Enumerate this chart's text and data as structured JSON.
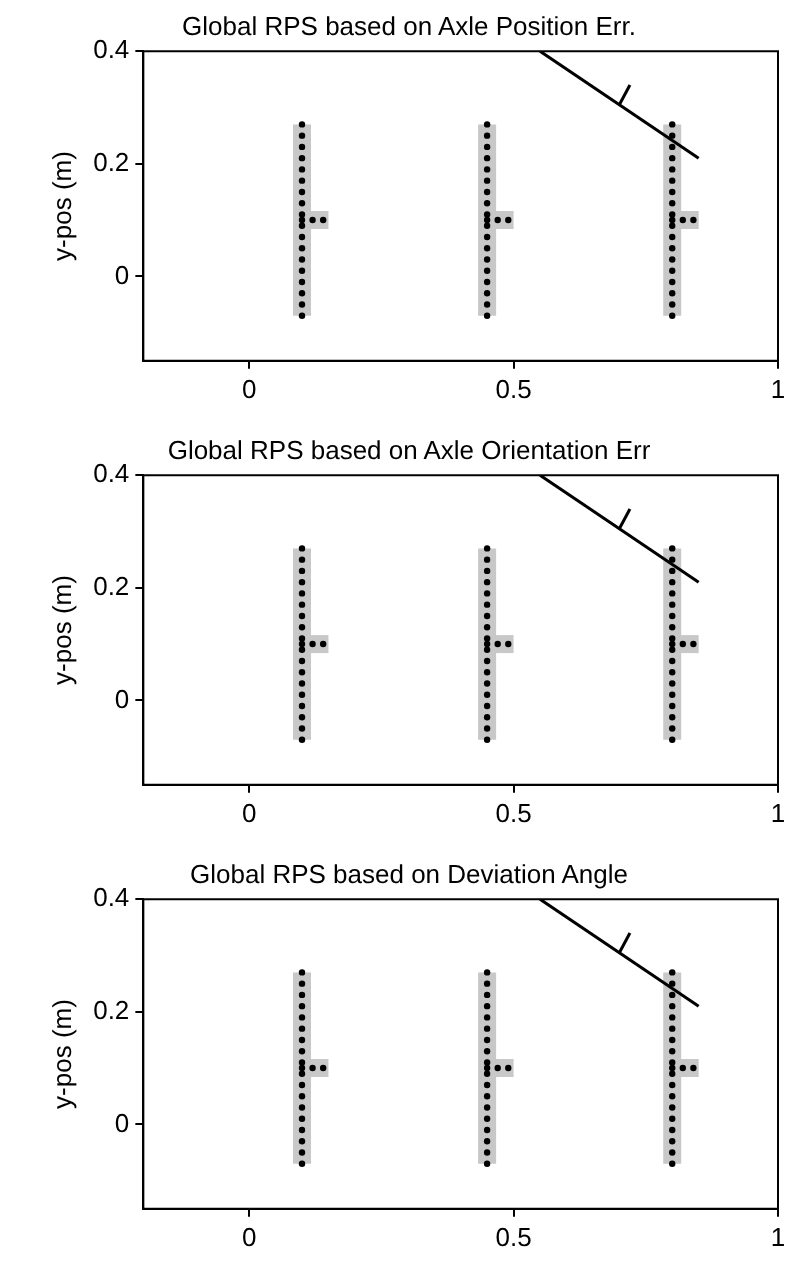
{
  "chart_data": [
    {
      "type": "scatter",
      "title": "Global RPS based on Axle Position Err.",
      "ylabel": "y-pos (m)",
      "xlim": [
        -0.2,
        1
      ],
      "ylim": [
        -0.15,
        0.4
      ],
      "xticks": [
        0,
        0.5,
        1
      ],
      "yticks": [
        0,
        0.2,
        0.4
      ],
      "grid": false,
      "legend": false,
      "series": [
        {
          "type": "line",
          "color": "#c8c8c8",
          "x": [
            0.1,
            0.1
          ],
          "values": [
            -0.07,
            0.27
          ]
        },
        {
          "type": "line",
          "color": "#c8c8c8",
          "x": [
            0.1,
            0.15
          ],
          "values": [
            0.1,
            0.1
          ]
        },
        {
          "type": "line",
          "color": "#c8c8c8",
          "x": [
            0.45,
            0.45
          ],
          "values": [
            -0.07,
            0.27
          ]
        },
        {
          "type": "line",
          "color": "#c8c8c8",
          "x": [
            0.45,
            0.5
          ],
          "values": [
            0.1,
            0.1
          ]
        },
        {
          "type": "line",
          "color": "#c8c8c8",
          "x": [
            0.8,
            0.8
          ],
          "values": [
            -0.07,
            0.27
          ]
        },
        {
          "type": "line",
          "color": "#c8c8c8",
          "x": [
            0.8,
            0.85
          ],
          "values": [
            0.1,
            0.1
          ]
        },
        {
          "color": "#000000",
          "marker": "circle",
          "x": [
            0.1,
            0.1,
            0.1,
            0.1,
            0.1,
            0.1,
            0.1,
            0.1,
            0.1,
            0.1,
            0.1,
            0.1,
            0.1,
            0.1,
            0.1,
            0.1,
            0.1,
            0.1,
            0.1,
            0.12,
            0.14
          ],
          "values": [
            -0.07,
            -0.05,
            -0.03,
            -0.01,
            0.01,
            0.03,
            0.05,
            0.07,
            0.09,
            0.11,
            0.13,
            0.15,
            0.17,
            0.19,
            0.21,
            0.23,
            0.25,
            0.27,
            0.1,
            0.1,
            0.1
          ]
        },
        {
          "color": "#000000",
          "marker": "circle",
          "x": [
            0.45,
            0.45,
            0.45,
            0.45,
            0.45,
            0.45,
            0.45,
            0.45,
            0.45,
            0.45,
            0.45,
            0.45,
            0.45,
            0.45,
            0.45,
            0.45,
            0.45,
            0.45,
            0.45,
            0.47,
            0.49
          ],
          "values": [
            -0.07,
            -0.05,
            -0.03,
            -0.01,
            0.01,
            0.03,
            0.05,
            0.07,
            0.09,
            0.11,
            0.13,
            0.15,
            0.17,
            0.19,
            0.21,
            0.23,
            0.25,
            0.27,
            0.1,
            0.1,
            0.1
          ]
        },
        {
          "color": "#000000",
          "marker": "circle",
          "x": [
            0.8,
            0.8,
            0.8,
            0.8,
            0.8,
            0.8,
            0.8,
            0.8,
            0.8,
            0.8,
            0.8,
            0.8,
            0.8,
            0.8,
            0.8,
            0.8,
            0.8,
            0.8,
            0.8,
            0.82,
            0.84
          ],
          "values": [
            -0.07,
            -0.05,
            -0.03,
            -0.01,
            0.01,
            0.03,
            0.05,
            0.07,
            0.09,
            0.11,
            0.13,
            0.15,
            0.17,
            0.19,
            0.21,
            0.23,
            0.25,
            0.27,
            0.1,
            0.1,
            0.1
          ]
        },
        {
          "type": "line",
          "color": "#000000",
          "x": [
            0.55,
            0.85
          ],
          "values": [
            0.4,
            0.21
          ]
        },
        {
          "type": "line",
          "color": "#000000",
          "x": [
            0.7,
            0.72
          ],
          "values": [
            0.305,
            0.34
          ]
        }
      ]
    },
    {
      "type": "scatter",
      "title": "Global RPS based on Axle Orientation Err",
      "ylabel": "y-pos (m)",
      "xlim": [
        -0.2,
        1
      ],
      "ylim": [
        -0.15,
        0.4
      ],
      "xticks": [
        0,
        0.5,
        1
      ],
      "yticks": [
        0,
        0.2,
        0.4
      ],
      "grid": false,
      "legend": false,
      "series": [
        {
          "type": "line",
          "color": "#c8c8c8",
          "x": [
            0.1,
            0.1
          ],
          "values": [
            -0.07,
            0.27
          ]
        },
        {
          "type": "line",
          "color": "#c8c8c8",
          "x": [
            0.1,
            0.15
          ],
          "values": [
            0.1,
            0.1
          ]
        },
        {
          "type": "line",
          "color": "#c8c8c8",
          "x": [
            0.45,
            0.45
          ],
          "values": [
            -0.07,
            0.27
          ]
        },
        {
          "type": "line",
          "color": "#c8c8c8",
          "x": [
            0.45,
            0.5
          ],
          "values": [
            0.1,
            0.1
          ]
        },
        {
          "type": "line",
          "color": "#c8c8c8",
          "x": [
            0.8,
            0.8
          ],
          "values": [
            -0.07,
            0.27
          ]
        },
        {
          "type": "line",
          "color": "#c8c8c8",
          "x": [
            0.8,
            0.85
          ],
          "values": [
            0.1,
            0.1
          ]
        },
        {
          "color": "#000000",
          "marker": "circle",
          "x": [
            0.1,
            0.1,
            0.1,
            0.1,
            0.1,
            0.1,
            0.1,
            0.1,
            0.1,
            0.1,
            0.1,
            0.1,
            0.1,
            0.1,
            0.1,
            0.1,
            0.1,
            0.1,
            0.1,
            0.12,
            0.14
          ],
          "values": [
            -0.07,
            -0.05,
            -0.03,
            -0.01,
            0.01,
            0.03,
            0.05,
            0.07,
            0.09,
            0.11,
            0.13,
            0.15,
            0.17,
            0.19,
            0.21,
            0.23,
            0.25,
            0.27,
            0.1,
            0.1,
            0.1
          ]
        },
        {
          "color": "#000000",
          "marker": "circle",
          "x": [
            0.45,
            0.45,
            0.45,
            0.45,
            0.45,
            0.45,
            0.45,
            0.45,
            0.45,
            0.45,
            0.45,
            0.45,
            0.45,
            0.45,
            0.45,
            0.45,
            0.45,
            0.45,
            0.45,
            0.47,
            0.49
          ],
          "values": [
            -0.07,
            -0.05,
            -0.03,
            -0.01,
            0.01,
            0.03,
            0.05,
            0.07,
            0.09,
            0.11,
            0.13,
            0.15,
            0.17,
            0.19,
            0.21,
            0.23,
            0.25,
            0.27,
            0.1,
            0.1,
            0.1
          ]
        },
        {
          "color": "#000000",
          "marker": "circle",
          "x": [
            0.8,
            0.8,
            0.8,
            0.8,
            0.8,
            0.8,
            0.8,
            0.8,
            0.8,
            0.8,
            0.8,
            0.8,
            0.8,
            0.8,
            0.8,
            0.8,
            0.8,
            0.8,
            0.8,
            0.82,
            0.84
          ],
          "values": [
            -0.07,
            -0.05,
            -0.03,
            -0.01,
            0.01,
            0.03,
            0.05,
            0.07,
            0.09,
            0.11,
            0.13,
            0.15,
            0.17,
            0.19,
            0.21,
            0.23,
            0.25,
            0.27,
            0.1,
            0.1,
            0.1
          ]
        },
        {
          "type": "line",
          "color": "#000000",
          "x": [
            0.55,
            0.85
          ],
          "values": [
            0.4,
            0.21
          ]
        },
        {
          "type": "line",
          "color": "#000000",
          "x": [
            0.7,
            0.72
          ],
          "values": [
            0.305,
            0.34
          ]
        }
      ]
    },
    {
      "type": "scatter",
      "title": "Global RPS based on Deviation Angle",
      "ylabel": "y-pos (m)",
      "xlim": [
        -0.2,
        1
      ],
      "ylim": [
        -0.15,
        0.4
      ],
      "xticks": [
        0,
        0.5,
        1
      ],
      "yticks": [
        0,
        0.2,
        0.4
      ],
      "grid": false,
      "legend": false,
      "series": [
        {
          "type": "line",
          "color": "#c8c8c8",
          "x": [
            0.1,
            0.1
          ],
          "values": [
            -0.07,
            0.27
          ]
        },
        {
          "type": "line",
          "color": "#c8c8c8",
          "x": [
            0.1,
            0.15
          ],
          "values": [
            0.1,
            0.1
          ]
        },
        {
          "type": "line",
          "color": "#c8c8c8",
          "x": [
            0.45,
            0.45
          ],
          "values": [
            -0.07,
            0.27
          ]
        },
        {
          "type": "line",
          "color": "#c8c8c8",
          "x": [
            0.45,
            0.5
          ],
          "values": [
            0.1,
            0.1
          ]
        },
        {
          "type": "line",
          "color": "#c8c8c8",
          "x": [
            0.8,
            0.8
          ],
          "values": [
            -0.07,
            0.27
          ]
        },
        {
          "type": "line",
          "color": "#c8c8c8",
          "x": [
            0.8,
            0.85
          ],
          "values": [
            0.1,
            0.1
          ]
        },
        {
          "color": "#000000",
          "marker": "circle",
          "x": [
            0.1,
            0.1,
            0.1,
            0.1,
            0.1,
            0.1,
            0.1,
            0.1,
            0.1,
            0.1,
            0.1,
            0.1,
            0.1,
            0.1,
            0.1,
            0.1,
            0.1,
            0.1,
            0.1,
            0.12,
            0.14
          ],
          "values": [
            -0.07,
            -0.05,
            -0.03,
            -0.01,
            0.01,
            0.03,
            0.05,
            0.07,
            0.09,
            0.11,
            0.13,
            0.15,
            0.17,
            0.19,
            0.21,
            0.23,
            0.25,
            0.27,
            0.1,
            0.1,
            0.1
          ]
        },
        {
          "color": "#000000",
          "marker": "circle",
          "x": [
            0.45,
            0.45,
            0.45,
            0.45,
            0.45,
            0.45,
            0.45,
            0.45,
            0.45,
            0.45,
            0.45,
            0.45,
            0.45,
            0.45,
            0.45,
            0.45,
            0.45,
            0.45,
            0.45,
            0.47,
            0.49
          ],
          "values": [
            -0.07,
            -0.05,
            -0.03,
            -0.01,
            0.01,
            0.03,
            0.05,
            0.07,
            0.09,
            0.11,
            0.13,
            0.15,
            0.17,
            0.19,
            0.21,
            0.23,
            0.25,
            0.27,
            0.1,
            0.1,
            0.1
          ]
        },
        {
          "color": "#000000",
          "marker": "circle",
          "x": [
            0.8,
            0.8,
            0.8,
            0.8,
            0.8,
            0.8,
            0.8,
            0.8,
            0.8,
            0.8,
            0.8,
            0.8,
            0.8,
            0.8,
            0.8,
            0.8,
            0.8,
            0.8,
            0.8,
            0.82,
            0.84
          ],
          "values": [
            -0.07,
            -0.05,
            -0.03,
            -0.01,
            0.01,
            0.03,
            0.05,
            0.07,
            0.09,
            0.11,
            0.13,
            0.15,
            0.17,
            0.19,
            0.21,
            0.23,
            0.25,
            0.27,
            0.1,
            0.1,
            0.1
          ]
        },
        {
          "type": "line",
          "color": "#000000",
          "x": [
            0.55,
            0.85
          ],
          "values": [
            0.4,
            0.21
          ]
        },
        {
          "type": "line",
          "color": "#000000",
          "x": [
            0.7,
            0.72
          ],
          "values": [
            0.305,
            0.34
          ]
        }
      ]
    }
  ]
}
